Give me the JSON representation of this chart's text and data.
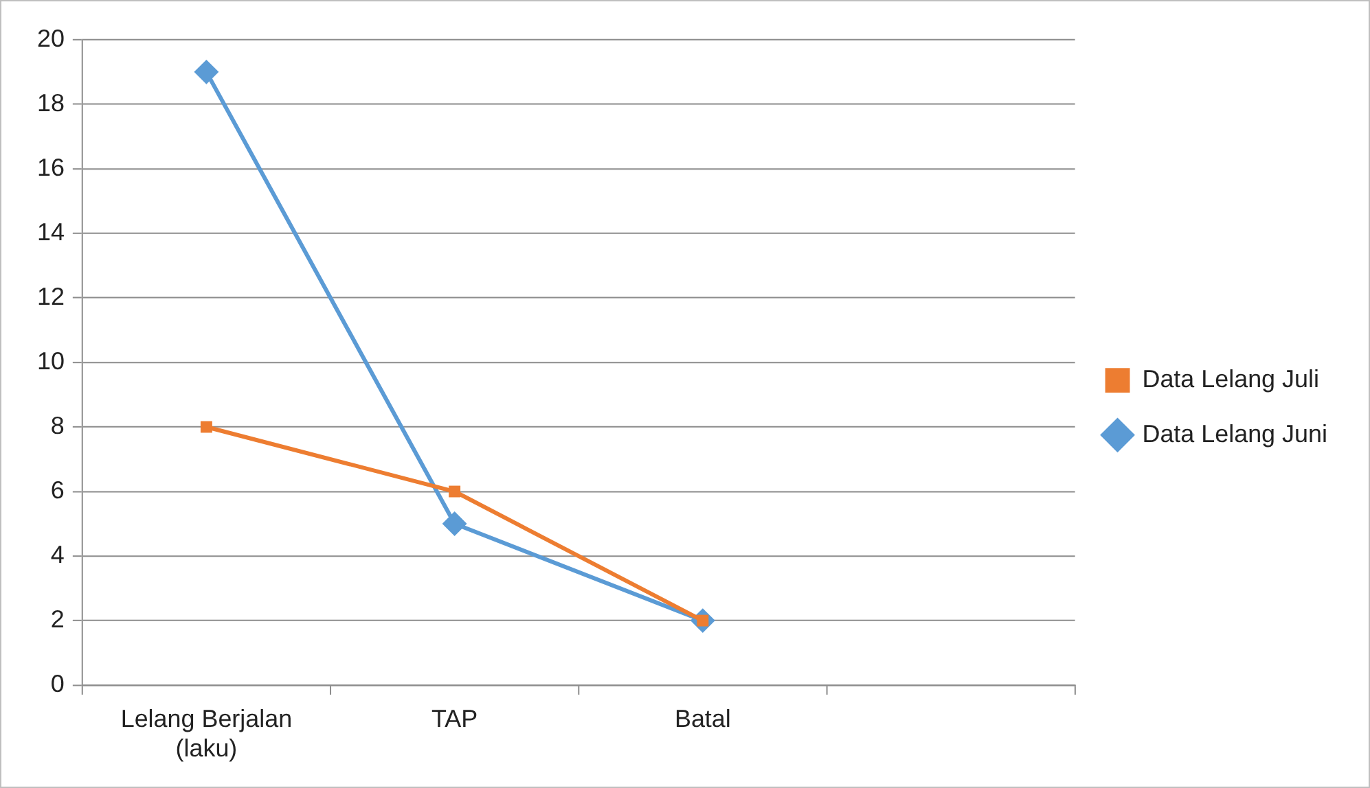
{
  "chart_data": {
    "type": "line",
    "categories": [
      "Lelang Berjalan (laku)",
      "TAP",
      "Batal",
      null
    ],
    "series": [
      {
        "name": "Data Lelang Juni",
        "color": "#5b9bd5",
        "marker": "diamond",
        "values": [
          19,
          5,
          2,
          null
        ]
      },
      {
        "name": "Data Lelang Juli",
        "color": "#ed7d31",
        "marker": "square",
        "values": [
          8,
          6,
          2,
          null
        ]
      }
    ],
    "ylim": [
      0,
      20
    ],
    "yticks": [
      0,
      2,
      4,
      6,
      8,
      10,
      12,
      14,
      16,
      18,
      20
    ],
    "grid": "y",
    "legend": "right",
    "line_style": "solid"
  }
}
